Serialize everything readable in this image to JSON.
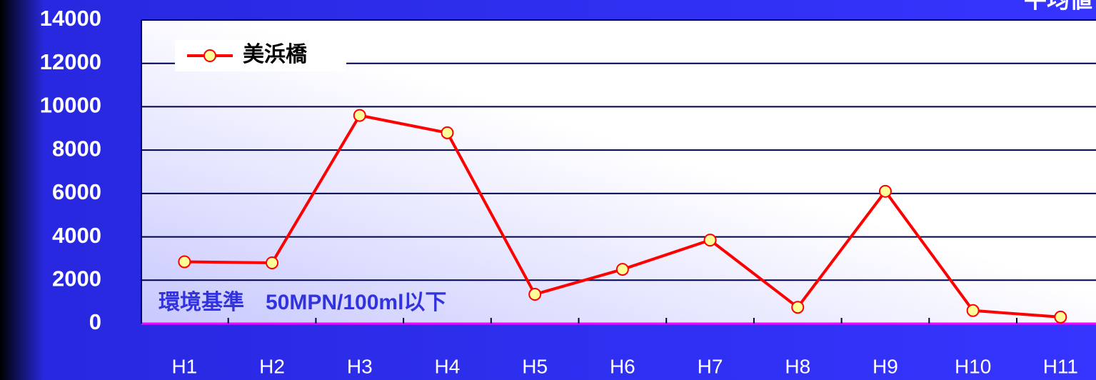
{
  "chart_data": {
    "type": "line",
    "title": "平均値",
    "annotation": "環境基準　50MPN/100ml以下",
    "categories": [
      "H1",
      "H2",
      "H3",
      "H4",
      "H5",
      "H6",
      "H7",
      "H8",
      "H9",
      "H10",
      "H11"
    ],
    "series": [
      {
        "name": "美浜橋",
        "color": "#ff0000",
        "marker_color": "#ffff99",
        "values": [
          2850,
          2800,
          9600,
          8800,
          1350,
          2500,
          3850,
          750,
          6100,
          600,
          300
        ]
      }
    ],
    "ylim": [
      0,
      14000
    ],
    "yticks": [
      0,
      2000,
      4000,
      6000,
      8000,
      10000,
      12000,
      14000
    ],
    "grid": true,
    "legend": "top-left"
  }
}
